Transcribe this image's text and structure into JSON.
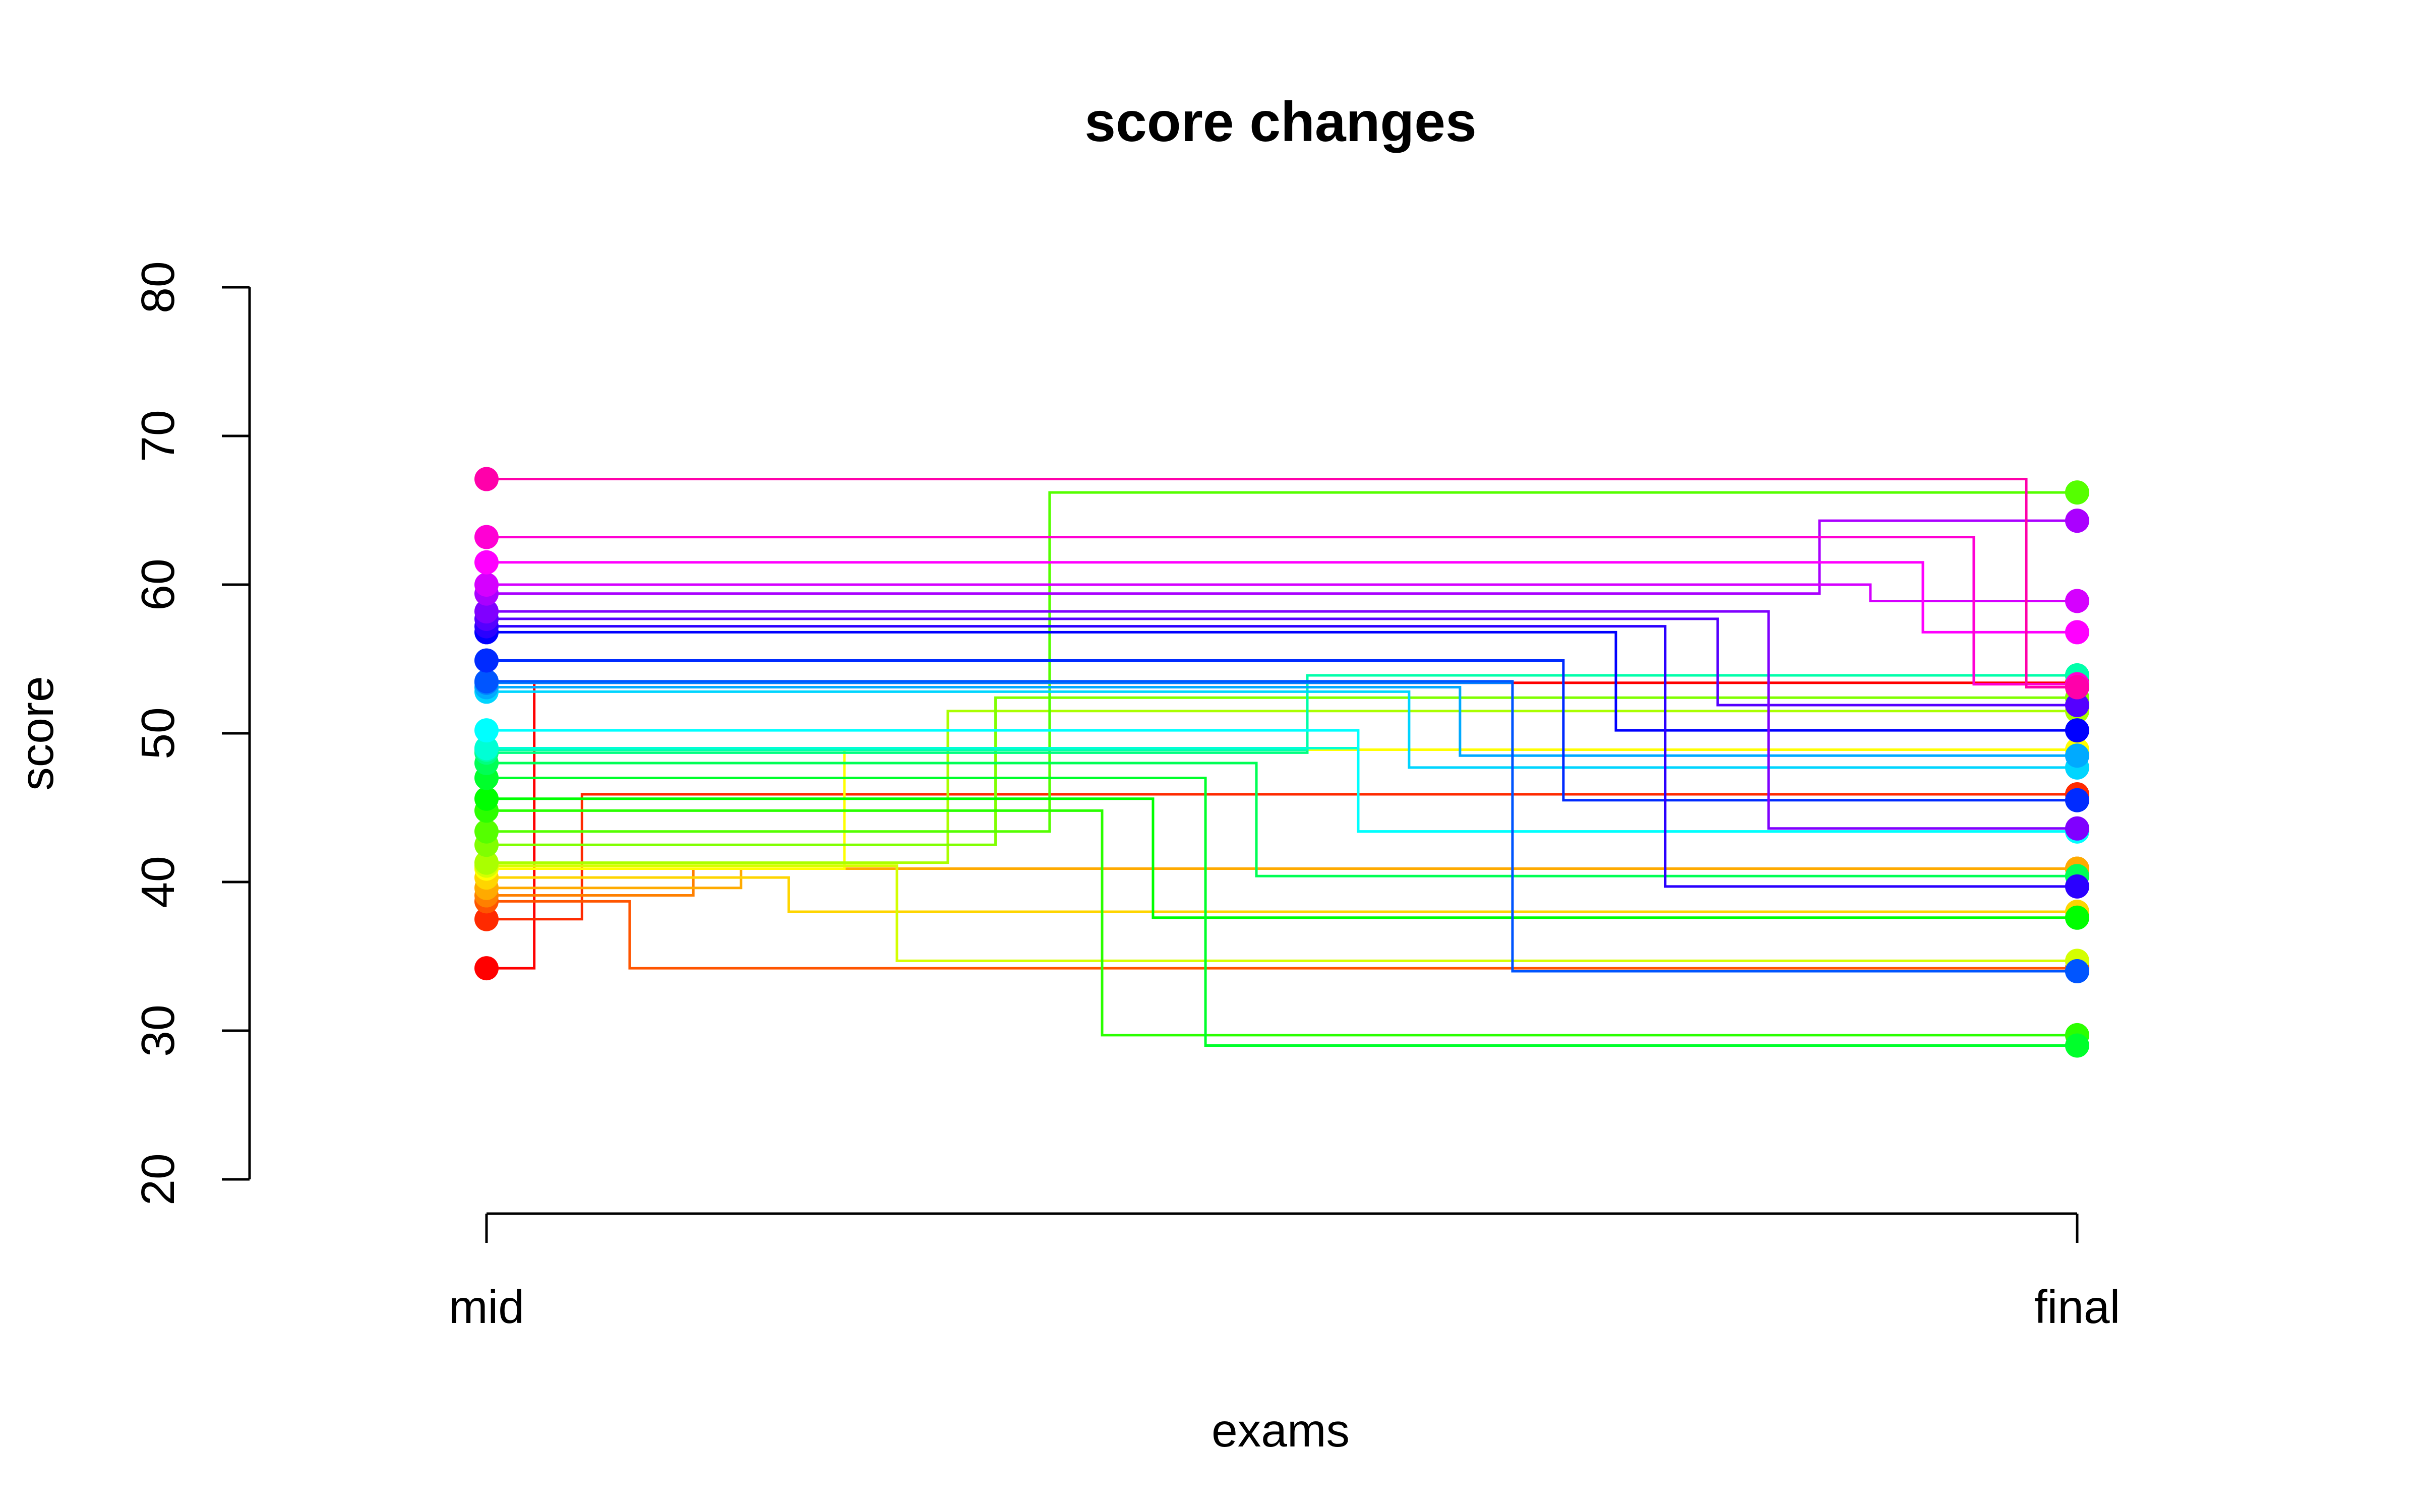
{
  "chart_data": {
    "type": "line",
    "title": "score changes",
    "xlabel": "exams",
    "ylabel": "score",
    "categories": [
      "mid",
      "final"
    ],
    "ylim": [
      20,
      80
    ],
    "yticks": [
      20,
      30,
      40,
      50,
      60,
      70,
      80
    ],
    "grid": false,
    "legend": "none",
    "series": [
      {
        "mid": 34.2,
        "final": 53.4,
        "step": 0.03,
        "color": "#FF0000"
      },
      {
        "mid": 37.5,
        "final": 45.9,
        "step": 0.06,
        "color": "#FF2A00"
      },
      {
        "mid": 38.7,
        "final": 34.2,
        "step": 0.09,
        "color": "#FF5500"
      },
      {
        "mid": 39.1,
        "final": 40.9,
        "step": 0.13,
        "color": "#FF8000"
      },
      {
        "mid": 39.6,
        "final": 40.9,
        "step": 0.16,
        "color": "#FFAA00"
      },
      {
        "mid": 40.3,
        "final": 38.0,
        "step": 0.19,
        "color": "#FFD500"
      },
      {
        "mid": 40.9,
        "final": 48.9,
        "step": 0.225,
        "color": "#FFFF00"
      },
      {
        "mid": 41.1,
        "final": 34.7,
        "step": 0.258,
        "color": "#D4FF00"
      },
      {
        "mid": 41.3,
        "final": 51.5,
        "step": 0.29,
        "color": "#AAFF00"
      },
      {
        "mid": 42.5,
        "final": 52.4,
        "step": 0.32,
        "color": "#80FF00"
      },
      {
        "mid": 43.4,
        "final": 66.2,
        "step": 0.354,
        "color": "#55FF00"
      },
      {
        "mid": 44.8,
        "final": 29.7,
        "step": 0.387,
        "color": "#2BFF00"
      },
      {
        "mid": 45.6,
        "final": 37.6,
        "step": 0.419,
        "color": "#00FF00"
      },
      {
        "mid": 47.0,
        "final": 29.0,
        "step": 0.452,
        "color": "#00FF2B"
      },
      {
        "mid": 48.0,
        "final": 40.4,
        "step": 0.484,
        "color": "#00FF55"
      },
      {
        "mid": 48.7,
        "final": 53.9,
        "step": 0.516,
        "color": "#00FF80"
      },
      {
        "mid": 48.9,
        "final": 53.9,
        "step": 0.516,
        "color": "#00FFAA"
      },
      {
        "mid": 49.0,
        "final": 43.4,
        "step": 0.548,
        "color": "#00FFD5"
      },
      {
        "mid": 50.2,
        "final": 43.4,
        "step": 0.548,
        "color": "#00FFFF"
      },
      {
        "mid": 52.8,
        "final": 47.7,
        "step": 0.58,
        "color": "#00D5FF"
      },
      {
        "mid": 53.1,
        "final": 48.5,
        "step": 0.612,
        "color": "#00AAFF"
      },
      {
        "mid": 53.4,
        "final": 34.0,
        "step": 0.645,
        "color": "#0080FF"
      },
      {
        "mid": 53.5,
        "final": 34.0,
        "step": 0.645,
        "color": "#0055FF"
      },
      {
        "mid": 54.9,
        "final": 45.5,
        "step": 0.677,
        "color": "#002BFF"
      },
      {
        "mid": 56.8,
        "final": 50.2,
        "step": 0.71,
        "color": "#0000FF"
      },
      {
        "mid": 57.2,
        "final": 39.7,
        "step": 0.741,
        "color": "#2A00FF"
      },
      {
        "mid": 57.7,
        "final": 51.9,
        "step": 0.774,
        "color": "#5500FF"
      },
      {
        "mid": 58.2,
        "final": 43.6,
        "step": 0.806,
        "color": "#8000FF"
      },
      {
        "mid": 59.4,
        "final": 64.3,
        "step": 0.838,
        "color": "#AA00FF"
      },
      {
        "mid": 60.0,
        "final": 58.9,
        "step": 0.87,
        "color": "#D500FF"
      },
      {
        "mid": 61.5,
        "final": 56.8,
        "step": 0.903,
        "color": "#FF00FF"
      },
      {
        "mid": 63.2,
        "final": 53.3,
        "step": 0.935,
        "color": "#FF00D4"
      },
      {
        "mid": 67.1,
        "final": 53.1,
        "step": 0.968,
        "color": "#FF00AA"
      }
    ]
  }
}
